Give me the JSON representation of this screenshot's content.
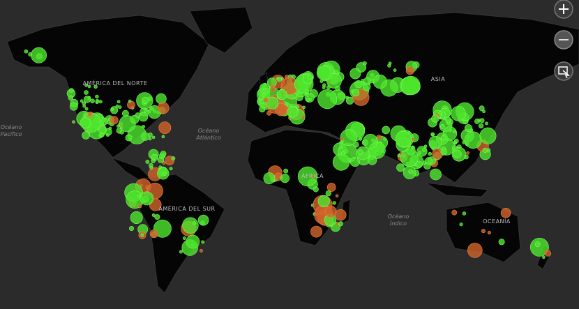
{
  "map": {
    "labels": {
      "north_america": "AMÉRICA DEL NORTE",
      "south_america": "AMÉRICA DEL SUR",
      "africa": "ÁFRICA",
      "asia": "ASIA",
      "oceania": "OCEANÍA",
      "atlantic": [
        "Océano",
        "Atlántico"
      ],
      "pacific": [
        "Océano",
        "Pacífico"
      ],
      "indian": [
        "Océano",
        "Índico"
      ]
    }
  }
}
